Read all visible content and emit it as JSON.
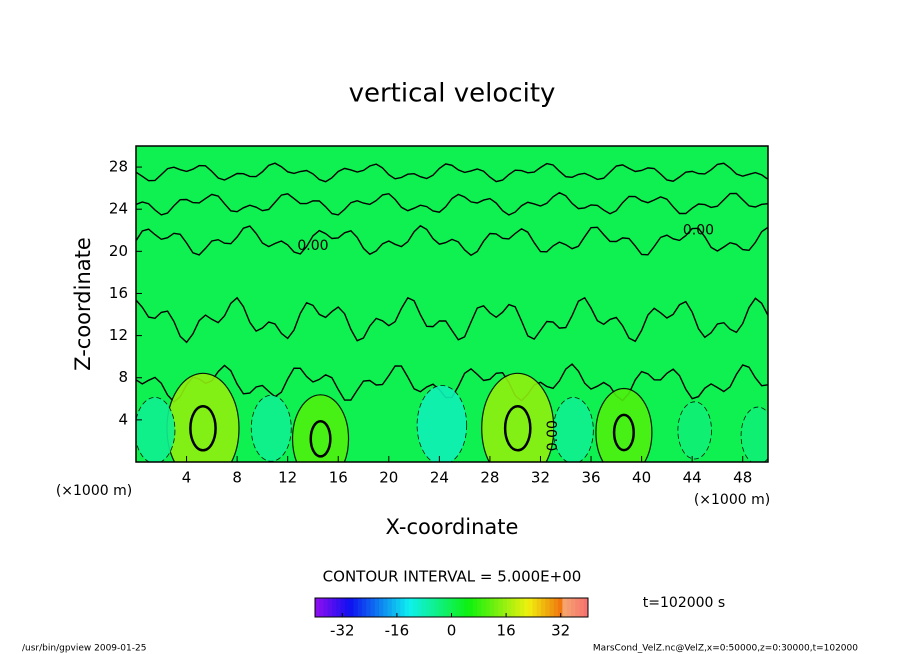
{
  "chart_data": {
    "type": "contour",
    "title": "vertical velocity",
    "x_label": "X-coordinate",
    "y_label": "Z-coordinate",
    "x_unit_label": "(×1000 m)",
    "y_unit_label": "(×1000 m)",
    "xlim": [
      0,
      50
    ],
    "ylim": [
      0,
      30
    ],
    "xticks": [
      4,
      8,
      12,
      16,
      20,
      24,
      28,
      32,
      36,
      40,
      44,
      48
    ],
    "yticks": [
      4,
      8,
      12,
      16,
      20,
      24,
      28
    ],
    "features": [
      {
        "x": 5.3,
        "y": 3.2,
        "value": 15
      },
      {
        "x": 14.6,
        "y": 2.2,
        "value": 10
      },
      {
        "x": 30.2,
        "y": 3.2,
        "value": 15
      },
      {
        "x": 38.6,
        "y": 2.8,
        "value": 10
      },
      {
        "x": 1.5,
        "y": 3.0,
        "value": -5
      },
      {
        "x": 10.7,
        "y": 3.2,
        "value": -5
      },
      {
        "x": 24.2,
        "y": 3.5,
        "value": -8
      },
      {
        "x": 34.6,
        "y": 3.0,
        "value": -5
      },
      {
        "x": 44.2,
        "y": 3.0,
        "value": -3
      },
      {
        "x": 49.2,
        "y": 2.5,
        "value": -3
      }
    ],
    "contour_labels": [
      "0.00",
      "0.00",
      "0.00"
    ],
    "contour_interval": "CONTOUR INTERVAL = 5.000E+00",
    "colorbar_lim": [
      -40,
      40
    ],
    "colorbar_ticks": [
      -32,
      -16,
      0,
      16,
      32
    ],
    "time_label": "t=102000 s",
    "footer_left": "/usr/bin/gpview  2009-01-25",
    "footer_right": "MarsCond_VelZ.nc@VelZ,x=0:50000,z=0:30000,t=102000"
  }
}
